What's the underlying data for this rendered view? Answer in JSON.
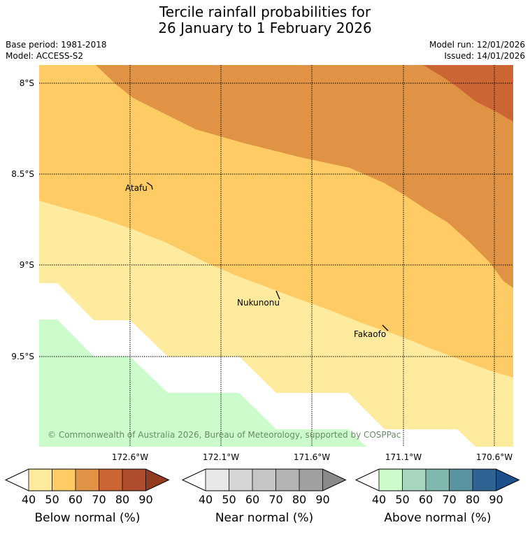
{
  "title": {
    "line1": "Tercile rainfall probabilities for",
    "line2": "26 January to 1 February 2026"
  },
  "meta": {
    "base_period": "Base period: 1981-2018",
    "model": "Model: ACCESS-S2",
    "model_run": "Model run: 12/01/2026",
    "issued": "Issued: 14/01/2026"
  },
  "map": {
    "lat_ticks": [
      "8°S",
      "8.5°S",
      "9°S",
      "9.5°S"
    ],
    "lon_ticks": [
      "172.6°W",
      "172.1°W",
      "171.6°W",
      "171.1°W",
      "170.6°W"
    ],
    "places": [
      "Atafu",
      "Nukunonu",
      "Fakaofo"
    ],
    "copyright": "© Commonwealth of Australia 2026, Bureau of Meteorology, supported by COSPPac"
  },
  "colorbars": [
    {
      "label": "Below normal (%)",
      "ticks": [
        "40",
        "50",
        "60",
        "70",
        "80",
        "90"
      ],
      "colors": [
        "#ffffff",
        "#feeb9d",
        "#fecb65",
        "#e09345",
        "#cb6533",
        "#b04d2c",
        "#933b1f"
      ]
    },
    {
      "label": "Near normal (%)",
      "ticks": [
        "40",
        "50",
        "60",
        "70",
        "80",
        "90"
      ],
      "colors": [
        "#ffffff",
        "#e8e8e8",
        "#d6d6d6",
        "#c5c5c5",
        "#b3b3b3",
        "#a0a0a0",
        "#8a8a8a"
      ]
    },
    {
      "label": "Above normal (%)",
      "ticks": [
        "40",
        "50",
        "60",
        "70",
        "80",
        "90"
      ],
      "colors": [
        "#ffffff",
        "#ccfccc",
        "#a6d6bd",
        "#80b8b0",
        "#5a93a0",
        "#2f6394",
        "#1c4f8c"
      ]
    }
  ],
  "chart_data": {
    "type": "heatmap",
    "categories_levels": [
      40,
      50,
      60,
      70,
      80,
      90
    ]
  }
}
